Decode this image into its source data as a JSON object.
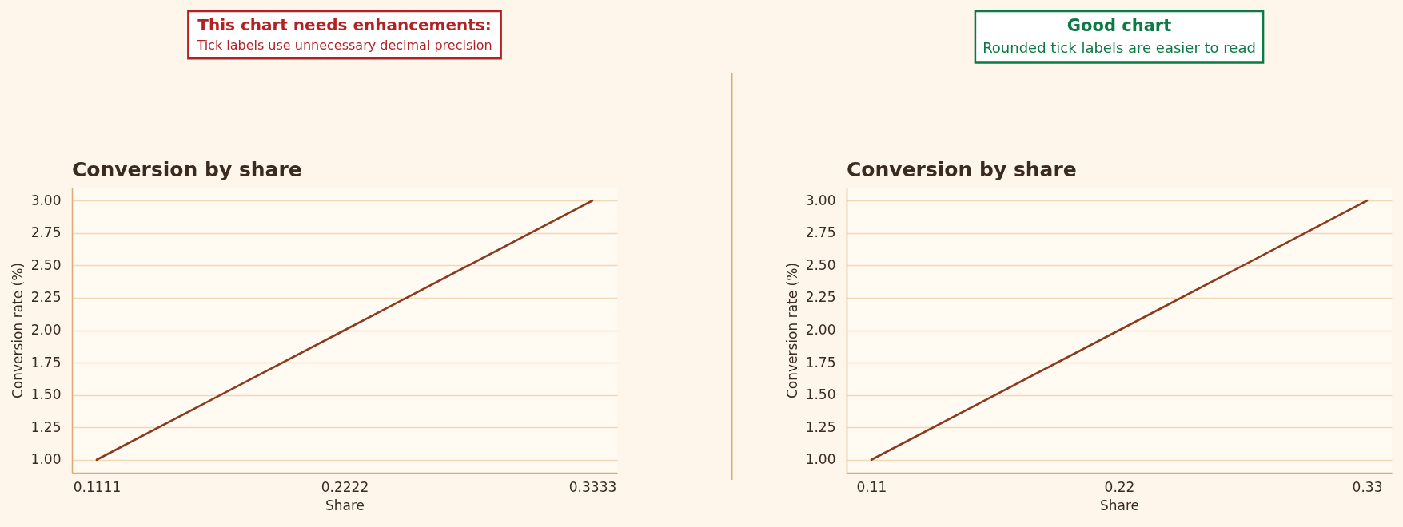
{
  "chart_data": [
    {
      "type": "line",
      "title": "Conversion by share",
      "xlabel": "Share",
      "ylabel": "Conversion rate (%)",
      "annotations": [
        "This chart needs enhancements:",
        "Tick labels use unnecessary decimal precision"
      ],
      "x": [
        0.1111,
        0.2222,
        0.3333
      ],
      "series": [
        {
          "color": "#8b3a1f",
          "values": [
            1,
            2,
            3
          ]
        }
      ],
      "xlim": [
        0.1,
        0.3444
      ],
      "ylim": [
        0.9,
        3.1
      ],
      "xticks": [
        0.1111,
        0.2222,
        0.3333
      ],
      "yticks": [
        {
          "value": 1,
          "label": "1.00"
        },
        {
          "value": 1.25,
          "label": "1.25"
        },
        {
          "value": 1.5,
          "label": "1.50"
        },
        {
          "value": 1.75,
          "label": "1.75"
        },
        {
          "value": 2,
          "label": "2.00"
        },
        {
          "value": 2.25,
          "label": "2.25"
        },
        {
          "value": 2.5,
          "label": "2.50"
        },
        {
          "value": 2.75,
          "label": "2.75"
        },
        {
          "value": 3,
          "label": "3.00"
        }
      ],
      "grid": "y"
    },
    {
      "type": "line",
      "title": "Conversion by share",
      "xlabel": "Share",
      "ylabel": "Conversion rate (%)",
      "annotations": [
        "Good chart",
        "Rounded tick labels are easier to read"
      ],
      "x": [
        0.1111,
        0.2222,
        0.3333
      ],
      "series": [
        {
          "color": "#8b3a1f",
          "values": [
            1,
            2,
            3
          ]
        }
      ],
      "xlim": [
        0.1,
        0.3444
      ],
      "ylim": [
        0.9,
        3.1
      ],
      "xticks": [
        {
          "value": 0.1111,
          "label": "0.11"
        },
        {
          "value": 0.2222,
          "label": "0.22"
        },
        {
          "value": 0.3333,
          "label": "0.33"
        }
      ],
      "yticks": [
        {
          "value": 1,
          "label": "1.00"
        },
        {
          "value": 1.25,
          "label": "1.25"
        },
        {
          "value": 1.5,
          "label": "1.50"
        },
        {
          "value": 1.75,
          "label": "1.75"
        },
        {
          "value": 2,
          "label": "2.00"
        },
        {
          "value": 2.25,
          "label": "2.25"
        },
        {
          "value": 2.5,
          "label": "2.50"
        },
        {
          "value": 2.75,
          "label": "2.75"
        },
        {
          "value": 3,
          "label": "3.00"
        }
      ],
      "grid": "y"
    }
  ]
}
